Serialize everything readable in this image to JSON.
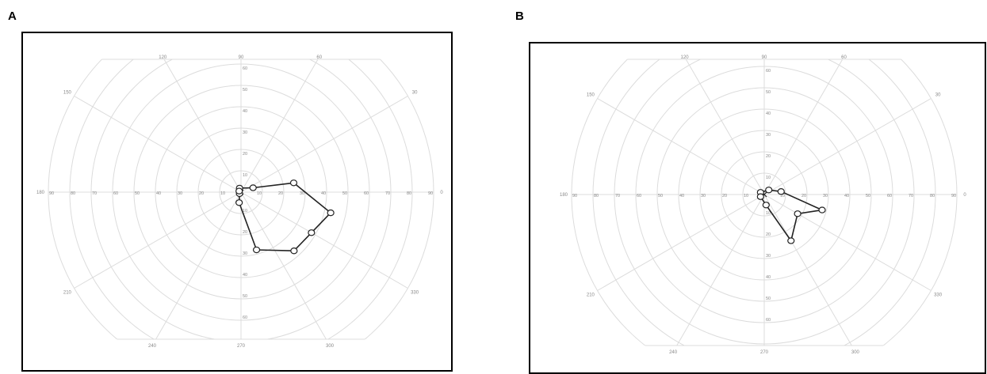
{
  "panels": [
    {
      "letter": "A"
    },
    {
      "letter": "B"
    }
  ],
  "chart_data": [
    {
      "type": "polar",
      "panel": "A",
      "ring_labels": [
        "10",
        "20",
        "30",
        "40",
        "50",
        "60",
        "70",
        "80",
        "90"
      ],
      "angle_labels": [
        "0",
        "30",
        "60",
        "90",
        "120",
        "150",
        "180",
        "210",
        "240",
        "270",
        "300",
        "330"
      ],
      "series": [
        {
          "points": [
            {
              "angle": 110,
              "radius": 2
            },
            {
              "angle": 20,
              "radius": 6
            },
            {
              "angle": 10,
              "radius": 25
            },
            {
              "angle": 347,
              "radius": 43
            },
            {
              "angle": 330,
              "radius": 38
            },
            {
              "angle": 312,
              "radius": 37
            },
            {
              "angle": 285,
              "radius": 28
            },
            {
              "angle": 260,
              "radius": 5
            },
            {
              "angle": 225,
              "radius": 1
            },
            {
              "angle": 150,
              "radius": 1
            }
          ]
        }
      ]
    },
    {
      "type": "polar",
      "panel": "B",
      "ring_labels": [
        "10",
        "20",
        "30",
        "40",
        "50",
        "60",
        "70",
        "80",
        "90"
      ],
      "angle_labels": [
        "0",
        "30",
        "60",
        "90",
        "120",
        "150",
        "180",
        "210",
        "240",
        "270",
        "300",
        "330"
      ],
      "series": [
        {
          "points": [
            {
              "angle": 150,
              "radius": 2
            },
            {
              "angle": 45,
              "radius": 3
            },
            {
              "angle": 10,
              "radius": 8
            },
            {
              "angle": 345,
              "radius": 28
            },
            {
              "angle": 330,
              "radius": 18
            },
            {
              "angle": 300,
              "radius": 25
            },
            {
              "angle": 280,
              "radius": 5
            },
            {
              "angle": 210,
              "radius": 2
            }
          ]
        }
      ]
    }
  ]
}
